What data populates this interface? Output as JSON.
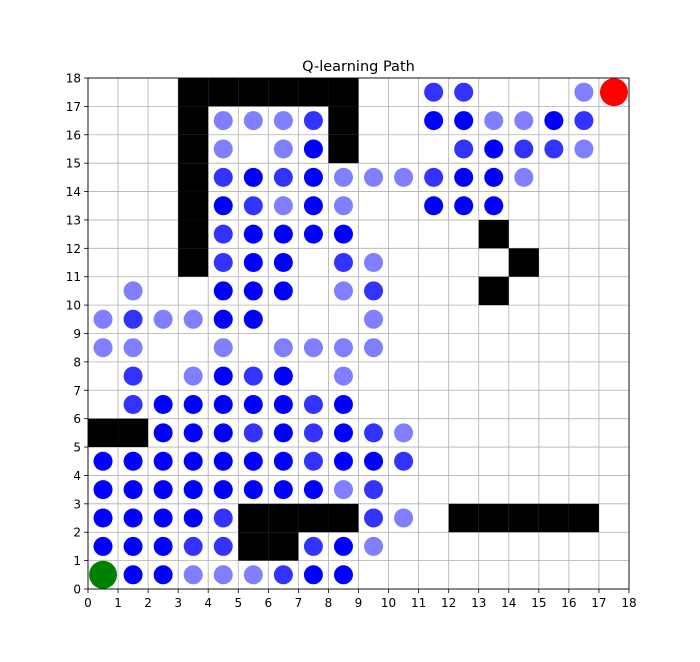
{
  "chart_data": {
    "type": "scatter",
    "title": "Q-learning Path",
    "xlabel": "",
    "ylabel": "",
    "xlim": [
      0,
      18
    ],
    "ylim": [
      0,
      18
    ],
    "xticks": [
      0,
      1,
      2,
      3,
      4,
      5,
      6,
      7,
      8,
      9,
      10,
      11,
      12,
      13,
      14,
      15,
      16,
      17,
      18
    ],
    "yticks": [
      0,
      1,
      2,
      3,
      4,
      5,
      6,
      7,
      8,
      9,
      10,
      11,
      12,
      13,
      14,
      15,
      16,
      17,
      18
    ],
    "grid": true,
    "obstacle_color": "#000000",
    "visit_color": "#0000ff",
    "start_color": "#008000",
    "goal_color": "#ff0000",
    "obstacles": [
      [
        3,
        17
      ],
      [
        4,
        17
      ],
      [
        5,
        17
      ],
      [
        6,
        17
      ],
      [
        7,
        17
      ],
      [
        8,
        17
      ],
      [
        3,
        16
      ],
      [
        8,
        16
      ],
      [
        3,
        15
      ],
      [
        8,
        15
      ],
      [
        3,
        14
      ],
      [
        3,
        13
      ],
      [
        3,
        12
      ],
      [
        3,
        11
      ],
      [
        13,
        12
      ],
      [
        14,
        11
      ],
      [
        13,
        10
      ],
      [
        0,
        5
      ],
      [
        1,
        5
      ],
      [
        5,
        2
      ],
      [
        6,
        2
      ],
      [
        7,
        2
      ],
      [
        8,
        2
      ],
      [
        12,
        2
      ],
      [
        13,
        2
      ],
      [
        14,
        2
      ],
      [
        15,
        2
      ],
      [
        16,
        2
      ],
      [
        5,
        1
      ],
      [
        6,
        1
      ]
    ],
    "visits": [
      {
        "x": 11.5,
        "y": 17.5,
        "a": 0.8
      },
      {
        "x": 12.5,
        "y": 17.5,
        "a": 0.8
      },
      {
        "x": 16.5,
        "y": 17.5,
        "a": 0.5
      },
      {
        "x": 4.5,
        "y": 16.5,
        "a": 0.5
      },
      {
        "x": 5.5,
        "y": 16.5,
        "a": 0.5
      },
      {
        "x": 6.5,
        "y": 16.5,
        "a": 0.5
      },
      {
        "x": 7.5,
        "y": 16.5,
        "a": 0.8
      },
      {
        "x": 11.5,
        "y": 16.5,
        "a": 1.0
      },
      {
        "x": 12.5,
        "y": 16.5,
        "a": 1.0
      },
      {
        "x": 13.5,
        "y": 16.5,
        "a": 0.5
      },
      {
        "x": 14.5,
        "y": 16.5,
        "a": 0.5
      },
      {
        "x": 15.5,
        "y": 16.5,
        "a": 1.0
      },
      {
        "x": 16.5,
        "y": 16.5,
        "a": 0.8
      },
      {
        "x": 4.5,
        "y": 15.5,
        "a": 0.5
      },
      {
        "x": 6.5,
        "y": 15.5,
        "a": 0.5
      },
      {
        "x": 7.5,
        "y": 15.5,
        "a": 1.0
      },
      {
        "x": 12.5,
        "y": 15.5,
        "a": 0.8
      },
      {
        "x": 13.5,
        "y": 15.5,
        "a": 1.0
      },
      {
        "x": 14.5,
        "y": 15.5,
        "a": 0.8
      },
      {
        "x": 15.5,
        "y": 15.5,
        "a": 0.8
      },
      {
        "x": 16.5,
        "y": 15.5,
        "a": 0.5
      },
      {
        "x": 4.5,
        "y": 14.5,
        "a": 0.8
      },
      {
        "x": 5.5,
        "y": 14.5,
        "a": 1.0
      },
      {
        "x": 6.5,
        "y": 14.5,
        "a": 0.8
      },
      {
        "x": 7.5,
        "y": 14.5,
        "a": 1.0
      },
      {
        "x": 8.5,
        "y": 14.5,
        "a": 0.5
      },
      {
        "x": 9.5,
        "y": 14.5,
        "a": 0.5
      },
      {
        "x": 10.5,
        "y": 14.5,
        "a": 0.5
      },
      {
        "x": 11.5,
        "y": 14.5,
        "a": 0.8
      },
      {
        "x": 12.5,
        "y": 14.5,
        "a": 1.0
      },
      {
        "x": 13.5,
        "y": 14.5,
        "a": 1.0
      },
      {
        "x": 14.5,
        "y": 14.5,
        "a": 0.5
      },
      {
        "x": 4.5,
        "y": 13.5,
        "a": 1.0
      },
      {
        "x": 5.5,
        "y": 13.5,
        "a": 0.8
      },
      {
        "x": 6.5,
        "y": 13.5,
        "a": 0.5
      },
      {
        "x": 7.5,
        "y": 13.5,
        "a": 1.0
      },
      {
        "x": 8.5,
        "y": 13.5,
        "a": 0.5
      },
      {
        "x": 11.5,
        "y": 13.5,
        "a": 1.0
      },
      {
        "x": 12.5,
        "y": 13.5,
        "a": 1.0
      },
      {
        "x": 13.5,
        "y": 13.5,
        "a": 1.0
      },
      {
        "x": 4.5,
        "y": 12.5,
        "a": 0.8
      },
      {
        "x": 5.5,
        "y": 12.5,
        "a": 1.0
      },
      {
        "x": 6.5,
        "y": 12.5,
        "a": 1.0
      },
      {
        "x": 7.5,
        "y": 12.5,
        "a": 1.0
      },
      {
        "x": 8.5,
        "y": 12.5,
        "a": 1.0
      },
      {
        "x": 4.5,
        "y": 11.5,
        "a": 0.8
      },
      {
        "x": 5.5,
        "y": 11.5,
        "a": 1.0
      },
      {
        "x": 6.5,
        "y": 11.5,
        "a": 1.0
      },
      {
        "x": 8.5,
        "y": 11.5,
        "a": 0.8
      },
      {
        "x": 9.5,
        "y": 11.5,
        "a": 0.5
      },
      {
        "x": 1.5,
        "y": 10.5,
        "a": 0.5
      },
      {
        "x": 4.5,
        "y": 10.5,
        "a": 1.0
      },
      {
        "x": 5.5,
        "y": 10.5,
        "a": 1.0
      },
      {
        "x": 6.5,
        "y": 10.5,
        "a": 1.0
      },
      {
        "x": 8.5,
        "y": 10.5,
        "a": 0.5
      },
      {
        "x": 9.5,
        "y": 10.5,
        "a": 0.8
      },
      {
        "x": 0.5,
        "y": 9.5,
        "a": 0.5
      },
      {
        "x": 1.5,
        "y": 9.5,
        "a": 0.8
      },
      {
        "x": 2.5,
        "y": 9.5,
        "a": 0.5
      },
      {
        "x": 3.5,
        "y": 9.5,
        "a": 0.5
      },
      {
        "x": 4.5,
        "y": 9.5,
        "a": 1.0
      },
      {
        "x": 5.5,
        "y": 9.5,
        "a": 1.0
      },
      {
        "x": 9.5,
        "y": 9.5,
        "a": 0.5
      },
      {
        "x": 0.5,
        "y": 8.5,
        "a": 0.5
      },
      {
        "x": 1.5,
        "y": 8.5,
        "a": 0.5
      },
      {
        "x": 4.5,
        "y": 8.5,
        "a": 0.5
      },
      {
        "x": 6.5,
        "y": 8.5,
        "a": 0.5
      },
      {
        "x": 7.5,
        "y": 8.5,
        "a": 0.5
      },
      {
        "x": 8.5,
        "y": 8.5,
        "a": 0.5
      },
      {
        "x": 9.5,
        "y": 8.5,
        "a": 0.5
      },
      {
        "x": 1.5,
        "y": 7.5,
        "a": 0.8
      },
      {
        "x": 3.5,
        "y": 7.5,
        "a": 0.5
      },
      {
        "x": 4.5,
        "y": 7.5,
        "a": 1.0
      },
      {
        "x": 5.5,
        "y": 7.5,
        "a": 0.8
      },
      {
        "x": 6.5,
        "y": 7.5,
        "a": 1.0
      },
      {
        "x": 8.5,
        "y": 7.5,
        "a": 0.5
      },
      {
        "x": 1.5,
        "y": 6.5,
        "a": 0.8
      },
      {
        "x": 2.5,
        "y": 6.5,
        "a": 1.0
      },
      {
        "x": 3.5,
        "y": 6.5,
        "a": 1.0
      },
      {
        "x": 4.5,
        "y": 6.5,
        "a": 1.0
      },
      {
        "x": 5.5,
        "y": 6.5,
        "a": 1.0
      },
      {
        "x": 6.5,
        "y": 6.5,
        "a": 1.0
      },
      {
        "x": 7.5,
        "y": 6.5,
        "a": 0.8
      },
      {
        "x": 8.5,
        "y": 6.5,
        "a": 1.0
      },
      {
        "x": 2.5,
        "y": 5.5,
        "a": 1.0
      },
      {
        "x": 3.5,
        "y": 5.5,
        "a": 1.0
      },
      {
        "x": 4.5,
        "y": 5.5,
        "a": 1.0
      },
      {
        "x": 5.5,
        "y": 5.5,
        "a": 0.8
      },
      {
        "x": 6.5,
        "y": 5.5,
        "a": 1.0
      },
      {
        "x": 7.5,
        "y": 5.5,
        "a": 0.8
      },
      {
        "x": 8.5,
        "y": 5.5,
        "a": 1.0
      },
      {
        "x": 9.5,
        "y": 5.5,
        "a": 0.8
      },
      {
        "x": 10.5,
        "y": 5.5,
        "a": 0.5
      },
      {
        "x": 0.5,
        "y": 4.5,
        "a": 1.0
      },
      {
        "x": 1.5,
        "y": 4.5,
        "a": 1.0
      },
      {
        "x": 2.5,
        "y": 4.5,
        "a": 1.0
      },
      {
        "x": 3.5,
        "y": 4.5,
        "a": 1.0
      },
      {
        "x": 4.5,
        "y": 4.5,
        "a": 1.0
      },
      {
        "x": 5.5,
        "y": 4.5,
        "a": 1.0
      },
      {
        "x": 6.5,
        "y": 4.5,
        "a": 1.0
      },
      {
        "x": 7.5,
        "y": 4.5,
        "a": 0.8
      },
      {
        "x": 8.5,
        "y": 4.5,
        "a": 1.0
      },
      {
        "x": 9.5,
        "y": 4.5,
        "a": 1.0
      },
      {
        "x": 10.5,
        "y": 4.5,
        "a": 0.8
      },
      {
        "x": 0.5,
        "y": 3.5,
        "a": 1.0
      },
      {
        "x": 1.5,
        "y": 3.5,
        "a": 1.0
      },
      {
        "x": 2.5,
        "y": 3.5,
        "a": 1.0
      },
      {
        "x": 3.5,
        "y": 3.5,
        "a": 1.0
      },
      {
        "x": 4.5,
        "y": 3.5,
        "a": 1.0
      },
      {
        "x": 5.5,
        "y": 3.5,
        "a": 1.0
      },
      {
        "x": 6.5,
        "y": 3.5,
        "a": 1.0
      },
      {
        "x": 7.5,
        "y": 3.5,
        "a": 1.0
      },
      {
        "x": 8.5,
        "y": 3.5,
        "a": 0.5
      },
      {
        "x": 9.5,
        "y": 3.5,
        "a": 0.8
      },
      {
        "x": 0.5,
        "y": 2.5,
        "a": 1.0
      },
      {
        "x": 1.5,
        "y": 2.5,
        "a": 1.0
      },
      {
        "x": 2.5,
        "y": 2.5,
        "a": 1.0
      },
      {
        "x": 3.5,
        "y": 2.5,
        "a": 1.0
      },
      {
        "x": 4.5,
        "y": 2.5,
        "a": 0.8
      },
      {
        "x": 9.5,
        "y": 2.5,
        "a": 0.8
      },
      {
        "x": 10.5,
        "y": 2.5,
        "a": 0.5
      },
      {
        "x": 0.5,
        "y": 1.5,
        "a": 1.0
      },
      {
        "x": 1.5,
        "y": 1.5,
        "a": 1.0
      },
      {
        "x": 2.5,
        "y": 1.5,
        "a": 1.0
      },
      {
        "x": 3.5,
        "y": 1.5,
        "a": 0.8
      },
      {
        "x": 4.5,
        "y": 1.5,
        "a": 0.8
      },
      {
        "x": 7.5,
        "y": 1.5,
        "a": 0.8
      },
      {
        "x": 8.5,
        "y": 1.5,
        "a": 1.0
      },
      {
        "x": 9.5,
        "y": 1.5,
        "a": 0.5
      },
      {
        "x": 1.5,
        "y": 0.5,
        "a": 1.0
      },
      {
        "x": 2.5,
        "y": 0.5,
        "a": 1.0
      },
      {
        "x": 3.5,
        "y": 0.5,
        "a": 0.5
      },
      {
        "x": 4.5,
        "y": 0.5,
        "a": 0.5
      },
      {
        "x": 5.5,
        "y": 0.5,
        "a": 0.5
      },
      {
        "x": 6.5,
        "y": 0.5,
        "a": 0.8
      },
      {
        "x": 7.5,
        "y": 0.5,
        "a": 1.0
      },
      {
        "x": 8.5,
        "y": 0.5,
        "a": 1.0
      }
    ],
    "start": {
      "x": 0.5,
      "y": 0.5
    },
    "goal": {
      "x": 17.5,
      "y": 17.5
    }
  }
}
